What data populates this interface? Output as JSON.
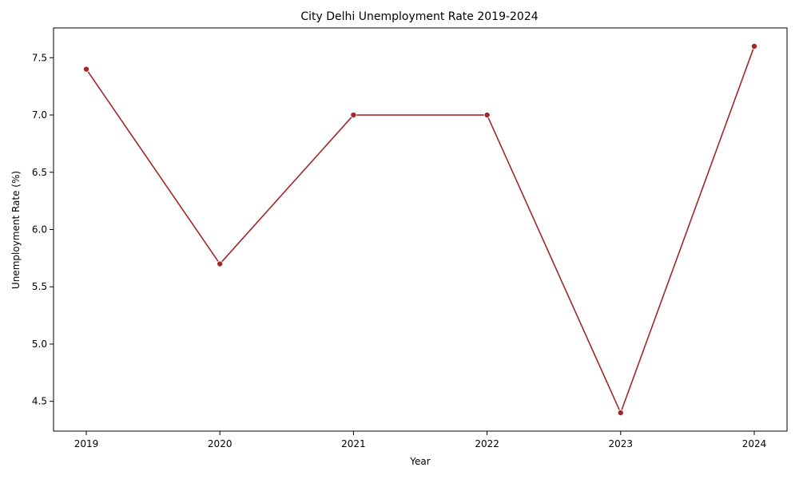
{
  "chart_data": {
    "type": "line",
    "title": "City Delhi Unemployment Rate 2019-2024",
    "xlabel": "Year",
    "ylabel": "Unemployment Rate (%)",
    "x": [
      "2019",
      "2020",
      "2021",
      "2022",
      "2023",
      "2024"
    ],
    "series": [
      {
        "values": [
          7.4,
          5.7,
          7.0,
          7.0,
          4.4,
          7.6
        ]
      }
    ],
    "yticks": [
      "4.5",
      "5.0",
      "5.5",
      "6.0",
      "6.5",
      "7.0",
      "7.5"
    ],
    "ylim": [
      4.24,
      7.76
    ],
    "grid": false,
    "line_color": "#a0282a",
    "marker_color": "#a0282a"
  }
}
